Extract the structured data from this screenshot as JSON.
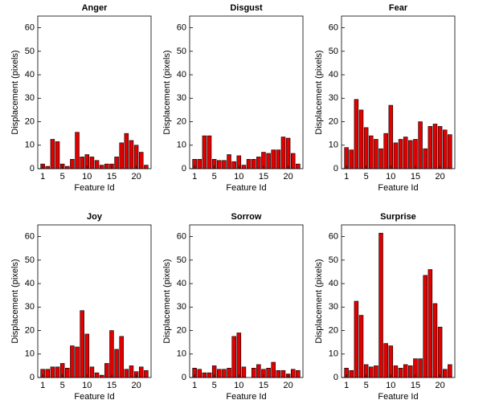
{
  "chart_data": [
    {
      "type": "bar",
      "title": "Anger",
      "x_label": "Feature Id",
      "y_label": "Displacement (pixels)",
      "color": "#e00000",
      "x": [
        1,
        2,
        3,
        4,
        5,
        6,
        7,
        8,
        9,
        10,
        11,
        12,
        13,
        14,
        15,
        16,
        17,
        18,
        19,
        20,
        21,
        22
      ],
      "values": [
        2,
        1,
        12.5,
        11.5,
        2,
        1,
        4,
        15.5,
        5,
        6,
        5,
        3.5,
        1.5,
        2,
        2,
        5,
        11,
        15,
        12,
        10,
        7,
        1.5
      ],
      "xlim": [
        0,
        23
      ],
      "xticks": [
        1,
        5,
        10,
        15,
        20
      ],
      "ylim": [
        0,
        65
      ],
      "yticks": [
        0,
        10,
        20,
        30,
        40,
        50,
        60
      ]
    },
    {
      "type": "bar",
      "title": "Disgust",
      "x_label": "Feature Id",
      "y_label": "Displacement (pixels)",
      "color": "#e00000",
      "x": [
        1,
        2,
        3,
        4,
        5,
        6,
        7,
        8,
        9,
        10,
        11,
        12,
        13,
        14,
        15,
        16,
        17,
        18,
        19,
        20,
        21,
        22
      ],
      "values": [
        4,
        4,
        14,
        14,
        4,
        3.5,
        3.5,
        6,
        3,
        5.5,
        1.5,
        4,
        4,
        5,
        7,
        6.5,
        8,
        8,
        13.5,
        13,
        6.5,
        2
      ],
      "xlim": [
        0,
        23
      ],
      "xticks": [
        1,
        5,
        10,
        15,
        20
      ],
      "ylim": [
        0,
        65
      ],
      "yticks": [
        0,
        10,
        20,
        30,
        40,
        50,
        60
      ]
    },
    {
      "type": "bar",
      "title": "Fear",
      "x_label": "Feature Id",
      "y_label": "Displacement (pixels)",
      "color": "#e00000",
      "x": [
        1,
        2,
        3,
        4,
        5,
        6,
        7,
        8,
        9,
        10,
        11,
        12,
        13,
        14,
        15,
        16,
        17,
        18,
        19,
        20,
        21,
        22
      ],
      "values": [
        9,
        8,
        29.5,
        25,
        17.5,
        14,
        12.5,
        8.5,
        15,
        27,
        11,
        12.5,
        13.5,
        12,
        12.5,
        20,
        8.5,
        18,
        19,
        18,
        16.5,
        14.5
      ],
      "xlim": [
        0,
        23
      ],
      "xticks": [
        1,
        5,
        10,
        15,
        20
      ],
      "ylim": [
        0,
        65
      ],
      "yticks": [
        0,
        10,
        20,
        30,
        40,
        50,
        60
      ]
    },
    {
      "type": "bar",
      "title": "Joy",
      "x_label": "Feature Id",
      "y_label": "Displacement (pixels)",
      "color": "#e00000",
      "x": [
        1,
        2,
        3,
        4,
        5,
        6,
        7,
        8,
        9,
        10,
        11,
        12,
        13,
        14,
        15,
        16,
        17,
        18,
        19,
        20,
        21,
        22
      ],
      "values": [
        3.5,
        3.5,
        4.5,
        4.5,
        6,
        4,
        13.5,
        13,
        28.5,
        18.5,
        4.5,
        2,
        1,
        6,
        20,
        12,
        17.5,
        3.5,
        5,
        2.5,
        4.5,
        3
      ],
      "xlim": [
        0,
        23
      ],
      "xticks": [
        1,
        5,
        10,
        15,
        20
      ],
      "ylim": [
        0,
        65
      ],
      "yticks": [
        0,
        10,
        20,
        30,
        40,
        50,
        60
      ]
    },
    {
      "type": "bar",
      "title": "Sorrow",
      "x_label": "Feature Id",
      "y_label": "Displacement (pixels)",
      "color": "#e00000",
      "x": [
        1,
        2,
        3,
        4,
        5,
        6,
        7,
        8,
        9,
        10,
        11,
        12,
        13,
        14,
        15,
        16,
        17,
        18,
        19,
        20,
        21,
        22
      ],
      "values": [
        4,
        3.5,
        2,
        2,
        5,
        3.5,
        3.5,
        4,
        17.5,
        19,
        4.5,
        0,
        4,
        5.5,
        3.5,
        4,
        6.5,
        3,
        3,
        1.5,
        3.5,
        3
      ],
      "xlim": [
        0,
        23
      ],
      "xticks": [
        1,
        5,
        10,
        15,
        20
      ],
      "ylim": [
        0,
        65
      ],
      "yticks": [
        0,
        10,
        20,
        30,
        40,
        50,
        60
      ]
    },
    {
      "type": "bar",
      "title": "Surprise",
      "x_label": "Feature Id",
      "y_label": "Displacement (pixels)",
      "color": "#e00000",
      "x": [
        1,
        2,
        3,
        4,
        5,
        6,
        7,
        8,
        9,
        10,
        11,
        12,
        13,
        14,
        15,
        16,
        17,
        18,
        19,
        20,
        21,
        22
      ],
      "values": [
        4,
        3,
        32.5,
        26.5,
        5.5,
        4.5,
        5,
        61.5,
        14.5,
        13.5,
        5,
        4,
        5.5,
        5,
        8,
        8,
        43.5,
        46,
        31.5,
        21.5,
        3.5,
        5.5
      ],
      "xlim": [
        0,
        23
      ],
      "xticks": [
        1,
        5,
        10,
        15,
        20
      ],
      "ylim": [
        0,
        65
      ],
      "yticks": [
        0,
        10,
        20,
        30,
        40,
        50,
        60
      ]
    }
  ]
}
